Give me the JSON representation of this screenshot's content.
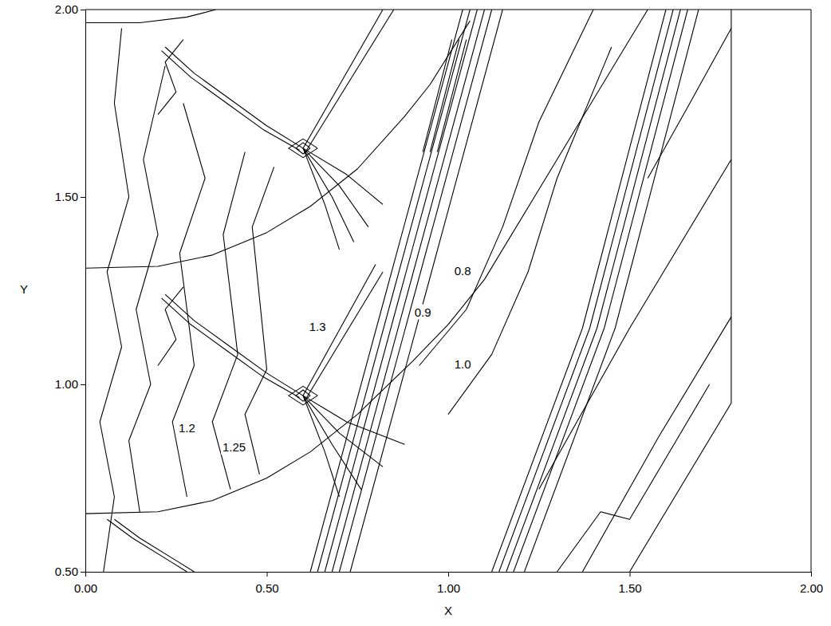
{
  "chart_data": {
    "type": "contour",
    "x_label": "X",
    "y_label": "Y",
    "xlim": [
      0,
      2
    ],
    "ylim": [
      0.5,
      2
    ],
    "xticks": [
      {
        "value": 0,
        "label": "0.00"
      },
      {
        "value": 0.5,
        "label": "0.50"
      },
      {
        "value": 1,
        "label": "1.00"
      },
      {
        "value": 1.5,
        "label": "1.50"
      },
      {
        "value": 2,
        "label": "2.00"
      }
    ],
    "yticks": [
      {
        "value": 0.5,
        "label": "0.50"
      },
      {
        "value": 1,
        "label": "1.00"
      },
      {
        "value": 1.5,
        "label": "1.50"
      },
      {
        "value": 2,
        "label": "2.00"
      }
    ],
    "grid": false,
    "color": "#000000",
    "series": [
      {
        "x": [
          0.6,
          0.82
        ],
        "y": [
          1.63,
          2.0
        ]
      },
      {
        "x": [
          0.61,
          0.85
        ],
        "y": [
          1.625,
          2.0
        ]
      },
      {
        "x": [
          0.6,
          0.8
        ],
        "y": [
          0.97,
          1.32
        ]
      },
      {
        "x": [
          0.61,
          0.82
        ],
        "y": [
          0.965,
          1.3
        ]
      },
      {
        "x": [
          0.62,
          0.83,
          1.04
        ],
        "y": [
          0.5,
          1.25,
          2.0
        ]
      },
      {
        "x": [
          0.64,
          0.85,
          1.06
        ],
        "y": [
          0.5,
          1.25,
          2.0
        ]
      },
      {
        "x": [
          0.66,
          0.87,
          1.08
        ],
        "y": [
          0.5,
          1.25,
          2.0
        ]
      },
      {
        "x": [
          0.68,
          0.89,
          1.1
        ],
        "y": [
          0.5,
          1.25,
          2.0
        ]
      },
      {
        "x": [
          0.7,
          0.91,
          1.12
        ],
        "y": [
          0.5,
          1.25,
          2.0
        ]
      },
      {
        "x": [
          0.73,
          0.94,
          1.15
        ],
        "y": [
          0.5,
          1.25,
          2.0
        ]
      },
      {
        "x": [
          1.12,
          1.37,
          1.6
        ],
        "y": [
          0.5,
          1.15,
          2.0
        ]
      },
      {
        "x": [
          1.14,
          1.39,
          1.62
        ],
        "y": [
          0.5,
          1.15,
          2.0
        ]
      },
      {
        "x": [
          1.16,
          1.41,
          1.64
        ],
        "y": [
          0.5,
          1.15,
          2.0
        ]
      },
      {
        "x": [
          1.18,
          1.43,
          1.66
        ],
        "y": [
          0.5,
          1.15,
          2.0
        ]
      },
      {
        "x": [
          1.21,
          1.46,
          1.69
        ],
        "y": [
          0.5,
          1.15,
          2.0
        ]
      },
      {
        "x": [
          0.93,
          0.97,
          1.01
        ],
        "y": [
          1.62,
          1.77,
          1.92
        ]
      },
      {
        "x": [
          0.95,
          0.99,
          1.03
        ],
        "y": [
          1.62,
          1.77,
          1.92
        ]
      },
      {
        "x": [
          0.97,
          1.01,
          1.05
        ],
        "y": [
          1.62,
          1.77,
          1.92
        ]
      },
      {
        "x": [
          0.0,
          0.2,
          0.35,
          0.5,
          0.62,
          0.75,
          0.9,
          1.0,
          1.1,
          1.55
        ],
        "y": [
          0.655,
          0.66,
          0.69,
          0.75,
          0.82,
          0.92,
          1.06,
          1.16,
          1.28,
          2.0
        ]
      },
      {
        "x": [
          0.0,
          0.2,
          0.35,
          0.5,
          0.62,
          0.75,
          0.88,
          0.95,
          1.06
        ],
        "y": [
          1.31,
          1.315,
          1.345,
          1.405,
          1.475,
          1.575,
          1.715,
          1.8,
          1.97
        ]
      },
      {
        "x": [
          0.0,
          0.15,
          0.28,
          0.36
        ],
        "y": [
          1.965,
          1.965,
          1.98,
          2.0
        ]
      },
      {
        "x": [
          1.78,
          1.78,
          1.5
        ],
        "y": [
          2.0,
          0.95,
          0.5
        ]
      },
      {
        "x": [
          1.25,
          1.5,
          1.78
        ],
        "y": [
          0.72,
          1.15,
          1.6
        ]
      },
      {
        "x": [
          1.37,
          1.58,
          1.78
        ],
        "y": [
          0.5,
          0.86,
          1.18
        ]
      },
      {
        "x": [
          1.55,
          1.66,
          1.78
        ],
        "y": [
          1.55,
          1.74,
          1.95
        ]
      },
      {
        "x": [
          1.3,
          1.42,
          1.5,
          1.72
        ],
        "y": [
          0.5,
          0.66,
          0.64,
          1.0
        ]
      },
      {
        "x": [
          0.92,
          1.05,
          1.15,
          1.25,
          1.4
        ],
        "y": [
          1.05,
          1.2,
          1.42,
          1.7,
          2.0
        ]
      },
      {
        "x": [
          1.0,
          1.12,
          1.22,
          1.3,
          1.45
        ],
        "y": [
          0.92,
          1.08,
          1.3,
          1.55,
          1.9
        ]
      },
      {
        "x": [
          0.6,
          0.5,
          0.4,
          0.3,
          0.22
        ],
        "y": [
          1.63,
          1.69,
          1.76,
          1.83,
          1.9
        ]
      },
      {
        "x": [
          0.59,
          0.49,
          0.39,
          0.29,
          0.21
        ],
        "y": [
          1.625,
          1.68,
          1.75,
          1.82,
          1.89
        ]
      },
      {
        "x": [
          0.6,
          0.5,
          0.4,
          0.3,
          0.22
        ],
        "y": [
          0.97,
          1.03,
          1.1,
          1.17,
          1.24
        ]
      },
      {
        "x": [
          0.59,
          0.49,
          0.39,
          0.29,
          0.21
        ],
        "y": [
          0.965,
          1.02,
          1.09,
          1.16,
          1.23
        ]
      },
      {
        "x": [
          0.08,
          0.15,
          0.25,
          0.3
        ],
        "y": [
          0.64,
          0.59,
          0.53,
          0.5
        ]
      },
      {
        "x": [
          0.06,
          0.13,
          0.23,
          0.28
        ],
        "y": [
          0.64,
          0.59,
          0.53,
          0.5
        ]
      },
      {
        "x": [
          0.6,
          0.66,
          0.7
        ],
        "y": [
          0.97,
          0.82,
          0.7
        ]
      },
      {
        "x": [
          0.6,
          0.68,
          0.76
        ],
        "y": [
          0.97,
          0.84,
          0.72
        ]
      },
      {
        "x": [
          0.6,
          0.7,
          0.82
        ],
        "y": [
          0.97,
          0.87,
          0.78
        ]
      },
      {
        "x": [
          0.6,
          0.72,
          0.88
        ],
        "y": [
          0.97,
          0.9,
          0.84
        ]
      },
      {
        "x": [
          0.6,
          0.66,
          0.7
        ],
        "y": [
          1.63,
          1.48,
          1.36
        ]
      },
      {
        "x": [
          0.6,
          0.68,
          0.74
        ],
        "y": [
          1.63,
          1.5,
          1.38
        ]
      },
      {
        "x": [
          0.6,
          0.7,
          0.78
        ],
        "y": [
          1.63,
          1.53,
          1.42
        ]
      },
      {
        "x": [
          0.6,
          0.72,
          0.82
        ],
        "y": [
          1.63,
          1.56,
          1.48
        ]
      },
      {
        "x": [
          0.05,
          0.08,
          0.04,
          0.1,
          0.06,
          0.12,
          0.08,
          0.1
        ],
        "y": [
          0.5,
          0.7,
          0.9,
          1.1,
          1.3,
          1.5,
          1.75,
          1.95
        ]
      },
      {
        "x": [
          0.15,
          0.12,
          0.18,
          0.14,
          0.2,
          0.16,
          0.22
        ],
        "y": [
          0.66,
          0.85,
          1.0,
          1.2,
          1.4,
          1.6,
          1.85
        ]
      },
      {
        "x": [
          0.28,
          0.24,
          0.3,
          0.26,
          0.33,
          0.27
        ],
        "y": [
          0.7,
          0.9,
          1.05,
          1.35,
          1.55,
          1.75
        ]
      },
      {
        "x": [
          0.4,
          0.35,
          0.42,
          0.38,
          0.44
        ],
        "y": [
          0.72,
          0.9,
          1.08,
          1.4,
          1.62
        ]
      },
      {
        "x": [
          0.48,
          0.44,
          0.5,
          0.46,
          0.52
        ],
        "y": [
          0.76,
          0.92,
          1.04,
          1.42,
          1.58
        ]
      },
      {
        "x": [
          0.2,
          0.25,
          0.22,
          0.27
        ],
        "y": [
          1.05,
          1.12,
          1.2,
          1.26
        ]
      },
      {
        "x": [
          0.2,
          0.25,
          0.22,
          0.27
        ],
        "y": [
          1.72,
          1.78,
          1.86,
          1.92
        ]
      },
      {
        "x": [
          0.62,
          0.6,
          0.58,
          0.6,
          0.62
        ],
        "y": [
          0.97,
          0.985,
          0.97,
          0.955,
          0.97
        ]
      },
      {
        "x": [
          0.64,
          0.6,
          0.56,
          0.6,
          0.64
        ],
        "y": [
          0.97,
          0.995,
          0.97,
          0.945,
          0.97
        ]
      },
      {
        "x": [
          0.62,
          0.6,
          0.58,
          0.6,
          0.62
        ],
        "y": [
          1.63,
          1.645,
          1.63,
          1.615,
          1.63
        ]
      },
      {
        "x": [
          0.64,
          0.6,
          0.56,
          0.6,
          0.64
        ],
        "y": [
          1.63,
          1.655,
          1.63,
          1.605,
          1.63
        ]
      }
    ],
    "annotations": [
      {
        "text": "1.3",
        "x": 0.64,
        "y": 1.15
      },
      {
        "text": "1.2",
        "x": 0.28,
        "y": 0.88
      },
      {
        "text": "1.25",
        "x": 0.41,
        "y": 0.83
      },
      {
        "text": "1.0",
        "x": 1.04,
        "y": 1.05
      },
      {
        "text": "0.9",
        "x": 0.93,
        "y": 1.19
      },
      {
        "text": "0.8",
        "x": 1.04,
        "y": 1.3
      }
    ]
  }
}
